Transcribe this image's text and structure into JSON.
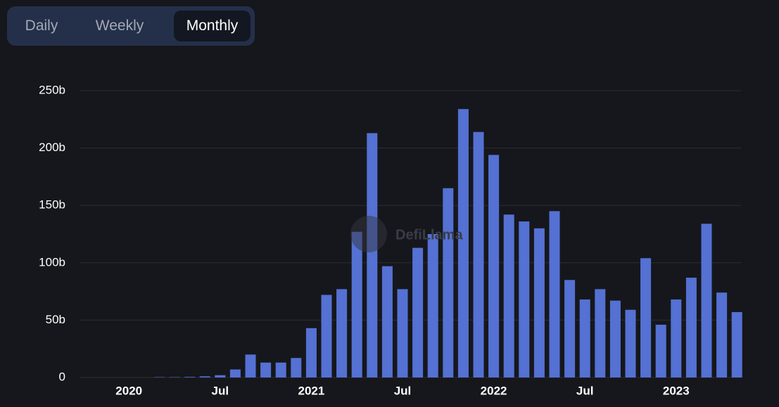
{
  "tabs": [
    "Daily",
    "Weekly",
    "Monthly"
  ],
  "watermark": "DefiLlama",
  "chart_data": {
    "type": "bar",
    "color": "#5471d3",
    "grid": true,
    "categories": [
      null,
      null,
      "2020",
      null,
      null,
      null,
      null,
      null,
      "Jul",
      null,
      null,
      null,
      null,
      null,
      "2021",
      null,
      null,
      null,
      null,
      null,
      "Jul",
      null,
      null,
      null,
      null,
      null,
      "2022",
      null,
      null,
      null,
      null,
      null,
      "Jul",
      null,
      null,
      null,
      null,
      null,
      "2023",
      null,
      null,
      null,
      null
    ],
    "values": [
      0,
      0,
      0,
      0,
      0.3,
      0.3,
      0.5,
      1,
      2,
      7,
      20,
      13,
      13,
      17,
      43,
      72,
      77,
      127,
      213,
      97,
      77,
      113,
      125,
      165,
      234,
      214,
      194,
      142,
      136,
      130,
      145,
      85,
      68,
      77,
      67,
      59,
      104,
      46,
      68,
      87,
      134,
      74,
      57
    ],
    "ylim": [
      0,
      250
    ],
    "yticks": [
      0,
      {
        "value": 50,
        "label": "50b"
      },
      {
        "value": 100,
        "label": "100b"
      },
      {
        "value": 150,
        "label": "150b"
      },
      {
        "value": 200,
        "label": "200b"
      },
      {
        "value": 250,
        "label": "250b"
      }
    ]
  }
}
